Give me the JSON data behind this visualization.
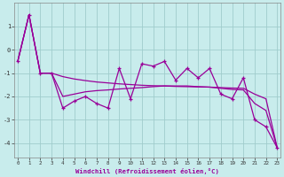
{
  "x": [
    0,
    1,
    2,
    3,
    4,
    5,
    6,
    7,
    8,
    9,
    10,
    11,
    12,
    13,
    14,
    15,
    16,
    17,
    18,
    19,
    20,
    21,
    22,
    23
  ],
  "line_zigzag": [
    -0.5,
    1.5,
    -1.0,
    -1.0,
    -2.5,
    -2.2,
    -2.0,
    -2.3,
    -2.5,
    -0.8,
    -2.1,
    -0.6,
    -0.7,
    -0.5,
    -1.3,
    -0.8,
    -1.2,
    -0.8,
    -1.9,
    -2.1,
    -1.2,
    -3.0,
    -3.3,
    -4.2
  ],
  "line_upper": [
    -0.5,
    1.5,
    -1.0,
    -1.0,
    -1.15,
    -1.25,
    -1.32,
    -1.38,
    -1.42,
    -1.46,
    -1.49,
    -1.52,
    -1.54,
    -1.55,
    -1.57,
    -1.58,
    -1.59,
    -1.6,
    -1.62,
    -1.64,
    -1.65,
    -1.9,
    -2.1,
    -4.2
  ],
  "line_lower": [
    -0.5,
    1.5,
    -1.0,
    -1.0,
    -2.0,
    -1.9,
    -1.8,
    -1.75,
    -1.72,
    -1.68,
    -1.65,
    -1.62,
    -1.58,
    -1.55,
    -1.55,
    -1.55,
    -1.58,
    -1.6,
    -1.65,
    -1.7,
    -1.72,
    -2.3,
    -2.6,
    -4.2
  ],
  "bg_color": "#c8ecec",
  "line_color": "#990099",
  "grid_color": "#a0cccc",
  "ylim": [
    -4.6,
    2.0
  ],
  "yticks": [
    -4,
    -3,
    -2,
    -1,
    0,
    1
  ],
  "xlim": [
    -0.3,
    23.3
  ],
  "xlabel": "Windchill (Refroidissement éolien,°C)"
}
